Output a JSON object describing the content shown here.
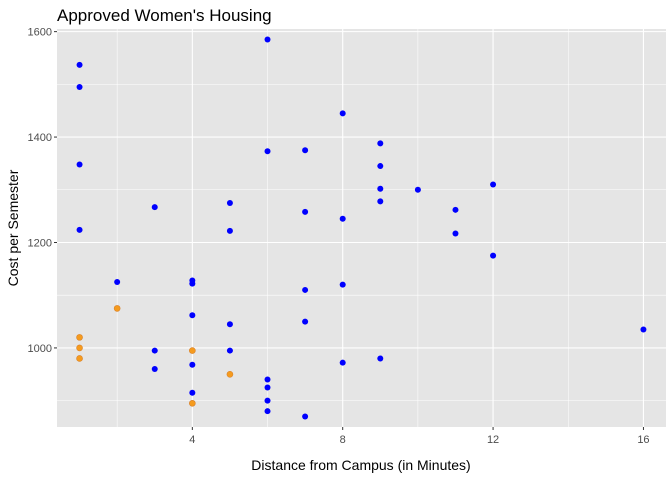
{
  "chart_data": {
    "type": "scatter",
    "title": "Approved Women's Housing",
    "xlabel": "Distance from Campus (in Minutes)",
    "ylabel": "Cost per Semester",
    "xlim": [
      0.4,
      16.6
    ],
    "ylim": [
      850,
      1605
    ],
    "x_ticks": [
      4,
      8,
      12,
      16
    ],
    "y_ticks": [
      1000,
      1200,
      1400,
      1600
    ],
    "x_minor_ticks": [
      2,
      6,
      10,
      14
    ],
    "y_minor_ticks": [
      900,
      1100,
      1300,
      1500
    ],
    "grid": true,
    "legend": "none",
    "colors": {
      "panel_background": "#e5e5e5",
      "grid": "#ffffff",
      "series_blue": "#0000ff",
      "series_orange": "#f59b1e"
    },
    "series": [
      {
        "color": "#0000ff",
        "x": [
          1,
          1,
          1,
          1,
          2,
          3,
          3,
          3,
          4,
          4,
          4,
          4,
          4,
          4,
          5,
          5,
          5,
          5,
          6,
          6,
          6,
          6,
          6,
          6,
          7,
          7,
          7,
          7,
          7,
          8,
          8,
          8,
          8,
          9,
          9,
          9,
          9,
          9,
          10,
          11,
          11,
          12,
          12,
          16
        ],
        "y": [
          1537,
          1495,
          1348,
          1224,
          1125,
          1267,
          995,
          960,
          1128,
          1122,
          1062,
          968,
          915,
          895,
          1275,
          1222,
          1045,
          995,
          1585,
          1373,
          940,
          925,
          900,
          880,
          1375,
          1258,
          1110,
          1050,
          870,
          1445,
          1245,
          1120,
          972,
          1388,
          1345,
          1302,
          1278,
          980,
          1300,
          1262,
          1217,
          1310,
          1175,
          1035
        ]
      },
      {
        "color": "#f59b1e",
        "x": [
          1,
          1,
          1,
          2,
          4,
          4,
          5
        ],
        "y": [
          1020,
          1000,
          980,
          1075,
          995,
          895,
          950
        ]
      }
    ]
  }
}
